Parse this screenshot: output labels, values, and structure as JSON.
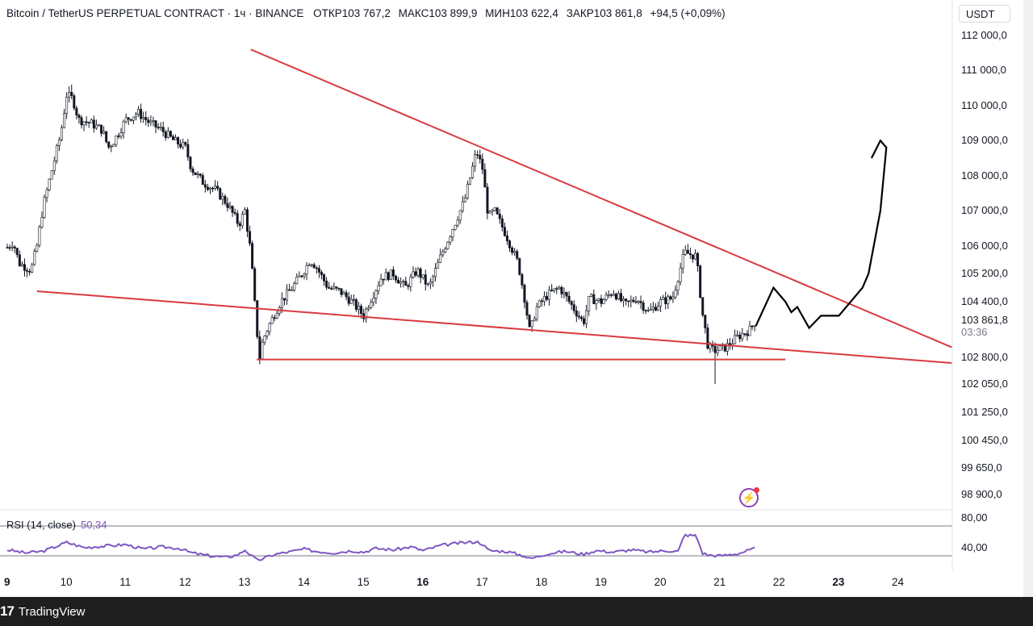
{
  "header": {
    "symbol": "Bitcoin / TetherUS PERPETUAL CONTRACT · 1ч · BINANCE",
    "open": "ОТКР103 767,2",
    "high": "МАКС103 899,9",
    "low": "МИН103 622,4",
    "close": "ЗАКР103 861,8",
    "change": "+94,5 (+0,09%)"
  },
  "currency": "USDT",
  "price_axis": [
    "112 000,0",
    "111 000,0",
    "110 000,0",
    "109 000,0",
    "108 000,0",
    "107 000,0",
    "106 000,0",
    "105 200,0",
    "104 400,0",
    "103 861,8",
    "102 800,0",
    "102 050,0",
    "101 250,0",
    "100 450,0",
    "99 650,0",
    "98 900,0"
  ],
  "countdown": "03:36",
  "rsi": {
    "title": "RSI (14, close)",
    "value": "50,34",
    "axis": [
      "80,00",
      "40,00"
    ]
  },
  "time_axis": [
    "9",
    "10",
    "11",
    "12",
    "13",
    "14",
    "15",
    "16",
    "17",
    "18",
    "19",
    "20",
    "21",
    "22",
    "23",
    "24"
  ],
  "footer": {
    "brand": "TradingView",
    "mark": "17"
  },
  "colors": {
    "trendline": "#d93a3f",
    "rsi": "#7e57c2",
    "candle": "#131722",
    "drawing": "#000000"
  },
  "chart_data": {
    "type": "candlestick",
    "title": "Bitcoin / TetherUS PERPETUAL CONTRACT",
    "timeframe": "1h",
    "ylim": [
      98900,
      112000
    ],
    "x_range": [
      "9",
      "24"
    ],
    "close_path": [
      [
        9.0,
        105950
      ],
      [
        9.1,
        106100
      ],
      [
        9.2,
        105500
      ],
      [
        9.4,
        105300
      ],
      [
        9.5,
        106000
      ],
      [
        9.6,
        107100
      ],
      [
        9.7,
        107800
      ],
      [
        9.8,
        108500
      ],
      [
        9.9,
        109200
      ],
      [
        10.0,
        110300
      ],
      [
        10.1,
        110200
      ],
      [
        10.2,
        109600
      ],
      [
        10.4,
        109500
      ],
      [
        10.6,
        109300
      ],
      [
        10.7,
        108800
      ],
      [
        10.8,
        109000
      ],
      [
        11.0,
        109600
      ],
      [
        11.2,
        109800
      ],
      [
        11.4,
        109500
      ],
      [
        11.6,
        109300
      ],
      [
        11.8,
        109000
      ],
      [
        12.0,
        108800
      ],
      [
        12.1,
        108200
      ],
      [
        12.3,
        107800
      ],
      [
        12.5,
        107600
      ],
      [
        12.7,
        107200
      ],
      [
        12.9,
        106600
      ],
      [
        13.0,
        107000
      ],
      [
        13.1,
        105800
      ],
      [
        13.2,
        103600
      ],
      [
        13.25,
        102800
      ],
      [
        13.3,
        103300
      ],
      [
        13.4,
        103700
      ],
      [
        13.6,
        104400
      ],
      [
        13.8,
        104800
      ],
      [
        14.0,
        105300
      ],
      [
        14.1,
        105600
      ],
      [
        14.2,
        105400
      ],
      [
        14.4,
        104800
      ],
      [
        14.6,
        104700
      ],
      [
        14.8,
        104400
      ],
      [
        15.0,
        104000
      ],
      [
        15.1,
        104400
      ],
      [
        15.3,
        105100
      ],
      [
        15.5,
        105200
      ],
      [
        15.7,
        104800
      ],
      [
        15.9,
        105300
      ],
      [
        16.1,
        104800
      ],
      [
        16.3,
        105700
      ],
      [
        16.5,
        106500
      ],
      [
        16.7,
        107300
      ],
      [
        16.9,
        108700
      ],
      [
        17.0,
        108200
      ],
      [
        17.1,
        106800
      ],
      [
        17.2,
        107000
      ],
      [
        17.4,
        106300
      ],
      [
        17.6,
        105500
      ],
      [
        17.7,
        104600
      ],
      [
        17.8,
        103500
      ],
      [
        17.9,
        104200
      ],
      [
        18.1,
        104600
      ],
      [
        18.3,
        104800
      ],
      [
        18.5,
        104300
      ],
      [
        18.7,
        103800
      ],
      [
        18.8,
        104500
      ],
      [
        19.0,
        104400
      ],
      [
        19.2,
        104700
      ],
      [
        19.4,
        104300
      ],
      [
        19.6,
        104500
      ],
      [
        19.8,
        104100
      ],
      [
        20.0,
        104400
      ],
      [
        20.2,
        104500
      ],
      [
        20.4,
        105800
      ],
      [
        20.6,
        105700
      ],
      [
        20.7,
        104100
      ],
      [
        20.8,
        103100
      ],
      [
        20.9,
        103000
      ],
      [
        21.1,
        103100
      ],
      [
        21.3,
        103400
      ],
      [
        21.5,
        103600
      ],
      [
        21.6,
        103860
      ]
    ],
    "swing_high": {
      "x": 10.1,
      "y": 110600
    },
    "swing_low": {
      "x": 20.9,
      "y": 102050
    },
    "trendlines": [
      {
        "name": "Resistance",
        "from": [
          13.1,
          111600
        ],
        "to": [
          24.9,
          103100
        ]
      },
      {
        "name": "Support",
        "from": [
          9.5,
          104700
        ],
        "to": [
          24.9,
          102650
        ]
      },
      {
        "name": "Horizontal",
        "from": [
          13.2,
          102750
        ],
        "to": [
          22.1,
          102750
        ]
      }
    ],
    "projection_path": [
      [
        21.6,
        103700
      ],
      [
        21.9,
        104800
      ],
      [
        22.1,
        104400
      ],
      [
        22.2,
        104100
      ],
      [
        22.3,
        104250
      ],
      [
        22.5,
        103650
      ],
      [
        22.7,
        104000
      ],
      [
        23.0,
        104000
      ],
      [
        23.2,
        104400
      ],
      [
        23.4,
        104800
      ],
      [
        23.5,
        105200
      ],
      [
        23.7,
        107000
      ],
      [
        23.8,
        108800
      ],
      [
        23.7,
        109000
      ],
      [
        23.55,
        108500
      ]
    ],
    "rsi_series": [
      [
        9.0,
        48
      ],
      [
        9.3,
        44
      ],
      [
        9.6,
        46
      ],
      [
        9.8,
        52
      ],
      [
        10.0,
        58
      ],
      [
        10.3,
        51
      ],
      [
        10.6,
        53
      ],
      [
        11.0,
        55
      ],
      [
        11.3,
        49
      ],
      [
        11.6,
        52
      ],
      [
        11.9,
        50
      ],
      [
        12.1,
        44
      ],
      [
        12.4,
        40
      ],
      [
        12.7,
        38
      ],
      [
        12.9,
        42
      ],
      [
        13.0,
        48
      ],
      [
        13.2,
        34
      ],
      [
        13.3,
        36
      ],
      [
        13.5,
        42
      ],
      [
        13.8,
        46
      ],
      [
        14.0,
        49
      ],
      [
        14.2,
        46
      ],
      [
        14.5,
        44
      ],
      [
        14.8,
        47
      ],
      [
        15.0,
        45
      ],
      [
        15.2,
        50
      ],
      [
        15.5,
        48
      ],
      [
        15.8,
        52
      ],
      [
        16.0,
        47
      ],
      [
        16.3,
        54
      ],
      [
        16.6,
        57
      ],
      [
        16.9,
        59
      ],
      [
        17.0,
        56
      ],
      [
        17.1,
        47
      ],
      [
        17.4,
        46
      ],
      [
        17.7,
        40
      ],
      [
        17.8,
        36
      ],
      [
        18.1,
        43
      ],
      [
        18.4,
        46
      ],
      [
        18.7,
        42
      ],
      [
        18.9,
        47
      ],
      [
        19.2,
        45
      ],
      [
        19.5,
        48
      ],
      [
        19.8,
        45
      ],
      [
        20.1,
        47
      ],
      [
        20.3,
        46
      ],
      [
        20.4,
        68
      ],
      [
        20.6,
        67
      ],
      [
        20.7,
        44
      ],
      [
        20.8,
        41
      ],
      [
        21.0,
        40
      ],
      [
        21.3,
        43
      ],
      [
        21.6,
        50
      ]
    ]
  }
}
